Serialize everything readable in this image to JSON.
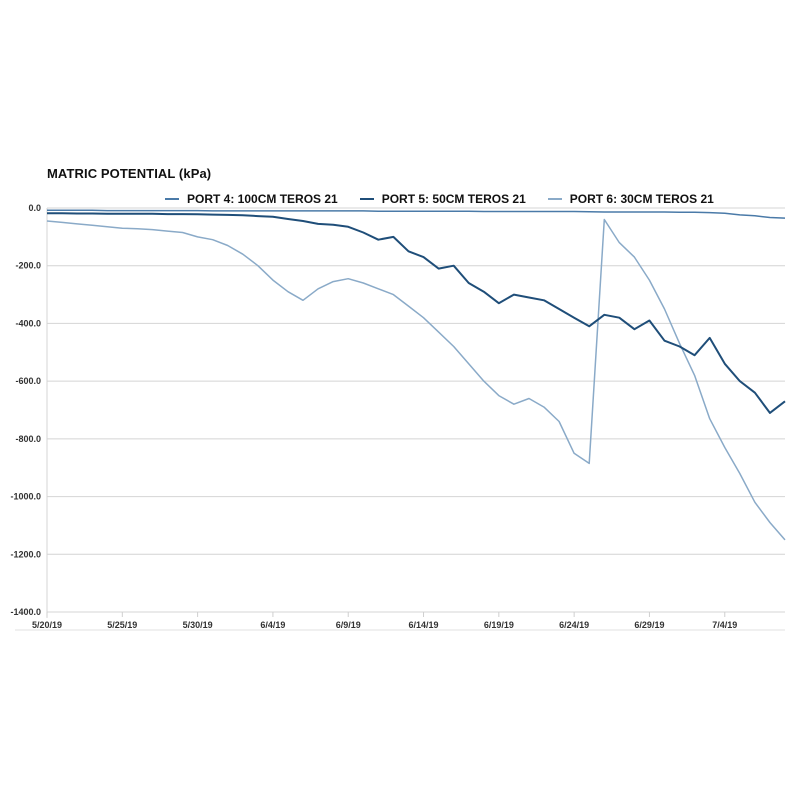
{
  "chart_data": {
    "type": "line",
    "title": "MATRIC POTENTIAL (kPa)",
    "xlabel": "",
    "ylabel": "MATRIC POTENTIAL (kPa)",
    "ylim": [
      -1400,
      0
    ],
    "yticks": [
      "0.0",
      "-200.0",
      "-400.0",
      "-600.0",
      "-800.0",
      "-1000.0",
      "-1200.0",
      "-1400.0"
    ],
    "ytick_values": [
      0,
      -200,
      -400,
      -600,
      -800,
      -1000,
      -1200,
      -1400
    ],
    "xticks": [
      "5/20/19",
      "5/25/19",
      "5/30/19",
      "6/4/19",
      "6/9/19",
      "6/14/19",
      "6/19/19",
      "6/24/19",
      "6/29/19",
      "7/4/19"
    ],
    "xtick_day_index": [
      0,
      5,
      10,
      15,
      20,
      25,
      30,
      35,
      40,
      45
    ],
    "x_range_days": [
      0,
      49
    ],
    "grid": "horizontal",
    "legend_position": "top",
    "x": [
      "5/20",
      "5/21",
      "5/22",
      "5/23",
      "5/24",
      "5/25",
      "5/26",
      "5/27",
      "5/28",
      "5/29",
      "5/30",
      "5/31",
      "6/1",
      "6/2",
      "6/3",
      "6/4",
      "6/5",
      "6/6",
      "6/7",
      "6/8",
      "6/9",
      "6/10",
      "6/11",
      "6/12",
      "6/13",
      "6/14",
      "6/15",
      "6/16",
      "6/17",
      "6/18",
      "6/19",
      "6/20",
      "6/21",
      "6/22",
      "6/23",
      "6/24",
      "6/25",
      "6/26",
      "6/27",
      "6/28",
      "6/29",
      "6/30",
      "7/1",
      "7/2",
      "7/3",
      "7/4",
      "7/5",
      "7/6",
      "7/7",
      "7/8"
    ],
    "series": [
      {
        "name": "PORT 4: 100CM TEROS 21",
        "color": "#4a7aa8",
        "values": [
          -8,
          -8,
          -8,
          -8,
          -9,
          -9,
          -9,
          -9,
          -9,
          -9,
          -9,
          -10,
          -10,
          -10,
          -10,
          -10,
          -10,
          -10,
          -10,
          -10,
          -10,
          -10,
          -11,
          -11,
          -11,
          -11,
          -11,
          -11,
          -11,
          -12,
          -12,
          -12,
          -12,
          -12,
          -12,
          -12,
          -13,
          -14,
          -14,
          -14,
          -14,
          -14,
          -15,
          -15,
          -16,
          -18,
          -24,
          -27,
          -33,
          -35
        ]
      },
      {
        "name": "PORT 5: 50CM TEROS 21",
        "color": "#1f4e79",
        "values": [
          -18,
          -18,
          -19,
          -19,
          -20,
          -20,
          -20,
          -20,
          -21,
          -21,
          -22,
          -23,
          -24,
          -25,
          -28,
          -30,
          -38,
          -45,
          -55,
          -58,
          -65,
          -85,
          -110,
          -100,
          -150,
          -170,
          -210,
          -200,
          -260,
          -290,
          -330,
          -300,
          -310,
          -320,
          -350,
          -380,
          -410,
          -370,
          -380,
          -420,
          -390,
          -460,
          -480,
          -510,
          -450,
          -540,
          -600,
          -640,
          -710,
          -670
        ]
      },
      {
        "name": "PORT 6: 30CM TEROS 21",
        "color": "#8aaac8",
        "values": [
          -45,
          -50,
          -55,
          -60,
          -65,
          -70,
          -72,
          -75,
          -80,
          -85,
          -100,
          -110,
          -130,
          -160,
          -200,
          -250,
          -290,
          -320,
          -280,
          -255,
          -245,
          -260,
          -280,
          -300,
          -340,
          -380,
          -430,
          -480,
          -540,
          -600,
          -650,
          -680,
          -660,
          -690,
          -740,
          -850,
          -885,
          -40,
          -120,
          -170,
          -250,
          -350,
          -470,
          -580,
          -730,
          -830,
          -920,
          -1020,
          -1090,
          -1150
        ]
      }
    ]
  },
  "legend": {
    "items": [
      {
        "label": "PORT 4: 100CM TEROS 21",
        "color": "#4a7aa8"
      },
      {
        "label": "PORT 5: 50CM TEROS 21",
        "color": "#1f4e79"
      },
      {
        "label": "PORT 6: 30CM TEROS 21",
        "color": "#8aaac8"
      }
    ]
  }
}
